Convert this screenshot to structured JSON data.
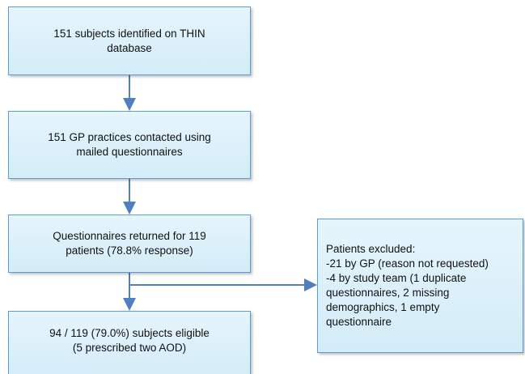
{
  "nodes": [
    {
      "lines": [
        "151 subjects identified on THIN",
        "database"
      ]
    },
    {
      "lines": [
        "151 GP practices contacted using",
        "mailed questionnaires"
      ]
    },
    {
      "lines": [
        "Questionnaires returned for 119",
        "patients (78.8% response)"
      ]
    },
    {
      "lines": [
        "94 / 119 (79.0%) subjects eligible",
        "(5 prescribed two AOD)"
      ]
    },
    {
      "lines": [
        "Patients excluded:",
        "-21 by GP (reason not requested)",
        "-4 by study team (1 duplicate",
        "questionnaires, 2 missing",
        "demographics, 1 empty",
        "questionnaire"
      ]
    }
  ]
}
